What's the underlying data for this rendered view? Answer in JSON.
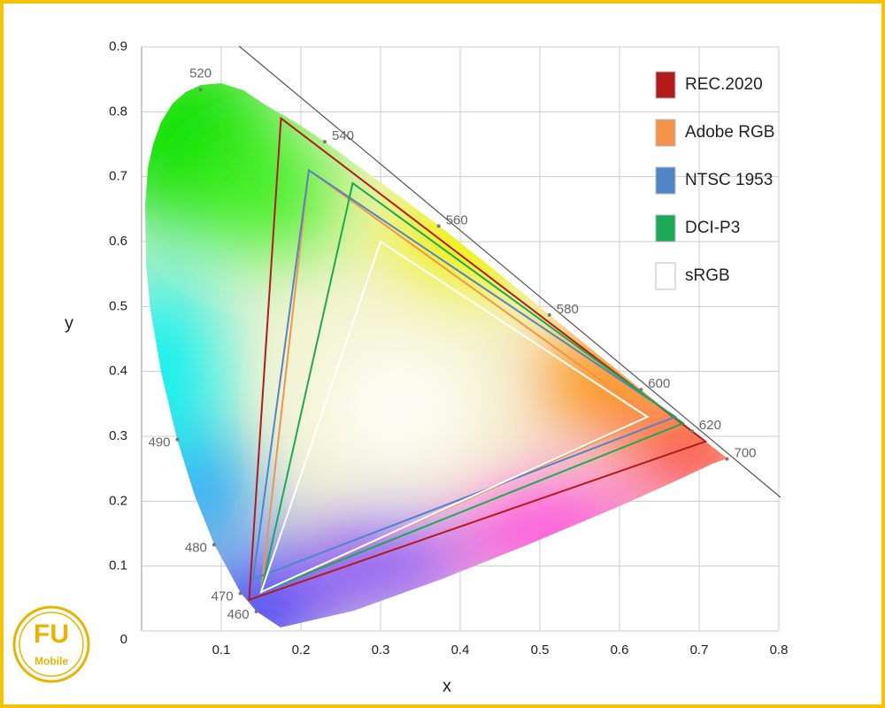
{
  "chart_data": {
    "type": "chromaticity",
    "x_label": "x",
    "y_label": "y",
    "xlim": [
      0,
      0.8
    ],
    "ylim": [
      0,
      0.9
    ],
    "xticks": [
      0.1,
      0.2,
      0.3,
      0.4,
      0.5,
      0.6,
      0.7,
      0.8
    ],
    "yticks": [
      0,
      0.1,
      0.2,
      0.3,
      0.4,
      0.5,
      0.6,
      0.7,
      0.8,
      0.9
    ],
    "grid": true,
    "series": [
      {
        "name": "REC.2020",
        "color": "#b31b1b",
        "x": [
          0.708,
          0.175,
          0.135
        ],
        "y": [
          0.292,
          0.79,
          0.048
        ]
      },
      {
        "name": "Adobe RGB",
        "color": "#f4934a",
        "x": [
          0.64,
          0.21,
          0.15
        ],
        "y": [
          0.33,
          0.71,
          0.06
        ]
      },
      {
        "name": "NTSC 1953",
        "color": "#4f86c6",
        "x": [
          0.67,
          0.21,
          0.14
        ],
        "y": [
          0.33,
          0.71,
          0.08
        ]
      },
      {
        "name": "DCI-P3",
        "color": "#1aaa55",
        "x": [
          0.68,
          0.265,
          0.15
        ],
        "y": [
          0.32,
          0.69,
          0.06
        ]
      },
      {
        "name": "sRGB",
        "color": "#ffffff",
        "x": [
          0.635,
          0.3,
          0.15
        ],
        "y": [
          0.33,
          0.6,
          0.06
        ]
      }
    ],
    "wavelengths": [
      {
        "label": "460",
        "x": 0.144,
        "y": 0.03
      },
      {
        "label": "470",
        "x": 0.124,
        "y": 0.058
      },
      {
        "label": "480",
        "x": 0.091,
        "y": 0.133
      },
      {
        "label": "490",
        "x": 0.045,
        "y": 0.295
      },
      {
        "label": "520",
        "x": 0.074,
        "y": 0.834
      },
      {
        "label": "540",
        "x": 0.23,
        "y": 0.754
      },
      {
        "label": "560",
        "x": 0.373,
        "y": 0.624
      },
      {
        "label": "580",
        "x": 0.512,
        "y": 0.487
      },
      {
        "label": "600",
        "x": 0.627,
        "y": 0.372
      },
      {
        "label": "620",
        "x": 0.691,
        "y": 0.308
      },
      {
        "label": "700",
        "x": 0.735,
        "y": 0.265
      }
    ]
  },
  "logo": {
    "text": "FU",
    "subtext": "Mobile"
  }
}
